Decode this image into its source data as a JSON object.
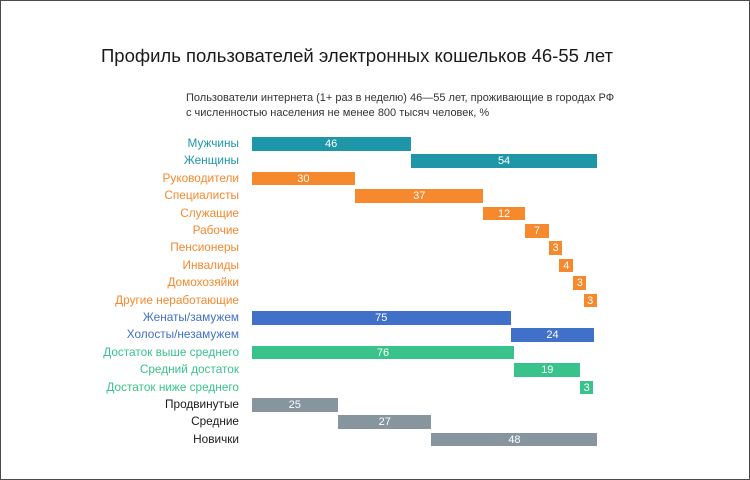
{
  "page": {
    "border_color": "#4a4a4a",
    "background": "#ffffff"
  },
  "title": "Профиль пользователей электронных кошельков 46-55 лет",
  "subtitle": {
    "line1": "Пользователи интернета (1+ раз в неделю) 46—55 лет, проживающие в городах РФ",
    "line2": "с численностью населения не менее 800 тысяч человек, %"
  },
  "chart_data": {
    "type": "bar",
    "variant": "horizontal-waterfall",
    "value_unit": "%",
    "xlim": [
      0,
      100
    ],
    "value_labels": "inside-center-white",
    "groups": [
      {
        "name": "gender",
        "color": "#1e96a8",
        "label_color": "#1e96a8",
        "items": [
          {
            "label": "Мужчины",
            "value": 46
          },
          {
            "label": "Женщины",
            "value": 54
          }
        ]
      },
      {
        "name": "occupation",
        "color": "#f6882d",
        "label_color": "#f6882d",
        "items": [
          {
            "label": "Руководители",
            "value": 30
          },
          {
            "label": "Специалисты",
            "value": 37
          },
          {
            "label": "Служащие",
            "value": 12
          },
          {
            "label": "Рабочие",
            "value": 7
          },
          {
            "label": "Пенсионеры",
            "value": 3
          },
          {
            "label": "Инвалиды",
            "value": 4
          },
          {
            "label": "Домохозяйки",
            "value": 3
          },
          {
            "label": "Другие неработающие",
            "value": 3
          }
        ]
      },
      {
        "name": "marital",
        "color": "#4170c8",
        "label_color": "#4170c8",
        "items": [
          {
            "label": "Женаты/замужем",
            "value": 75
          },
          {
            "label": "Холосты/незамужем",
            "value": 24
          }
        ]
      },
      {
        "name": "income",
        "color": "#39c28c",
        "label_color": "#39c28c",
        "items": [
          {
            "label": "Достаток выше среднего",
            "value": 76
          },
          {
            "label": "Средний достаток",
            "value": 19
          },
          {
            "label": "Достаток ниже среднего",
            "value": 3
          }
        ]
      },
      {
        "name": "experience",
        "color": "#86959e",
        "label_color": "#1a1a1a",
        "items": [
          {
            "label": "Продвинутые",
            "value": 25
          },
          {
            "label": "Средние",
            "value": 27
          },
          {
            "label": "Новички",
            "value": 48
          }
        ]
      }
    ]
  }
}
